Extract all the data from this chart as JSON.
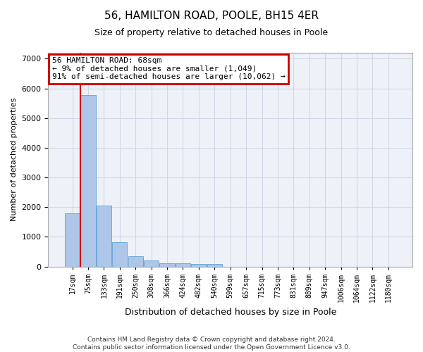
{
  "title": "56, HAMILTON ROAD, POOLE, BH15 4ER",
  "subtitle": "Size of property relative to detached houses in Poole",
  "xlabel": "Distribution of detached houses by size in Poole",
  "ylabel": "Number of detached properties",
  "footer_line1": "Contains HM Land Registry data © Crown copyright and database right 2024.",
  "footer_line2": "Contains public sector information licensed under the Open Government Licence v3.0.",
  "bar_labels": [
    "17sqm",
    "75sqm",
    "133sqm",
    "191sqm",
    "250sqm",
    "308sqm",
    "366sqm",
    "424sqm",
    "482sqm",
    "540sqm",
    "599sqm",
    "657sqm",
    "715sqm",
    "773sqm",
    "831sqm",
    "889sqm",
    "947sqm",
    "1006sqm",
    "1064sqm",
    "1122sqm",
    "1180sqm"
  ],
  "bar_values": [
    1780,
    5780,
    2060,
    820,
    340,
    195,
    115,
    100,
    95,
    80,
    0,
    0,
    0,
    0,
    0,
    0,
    0,
    0,
    0,
    0,
    0
  ],
  "bar_color": "#aec6e8",
  "bar_edge_color": "#6fa8d6",
  "grid_color": "#d0d8e8",
  "background_color": "#eef2f8",
  "annotation_line1": "56 HAMILTON ROAD: 68sqm",
  "annotation_line2": "← 9% of detached houses are smaller (1,049)",
  "annotation_line3": "91% of semi-detached houses are larger (10,062) →",
  "annotation_box_color": "#ffffff",
  "annotation_box_edge": "#cc0000",
  "red_line_x": 0.5,
  "ylim": [
    0,
    7200
  ],
  "yticks": [
    0,
    1000,
    2000,
    3000,
    4000,
    5000,
    6000,
    7000
  ]
}
